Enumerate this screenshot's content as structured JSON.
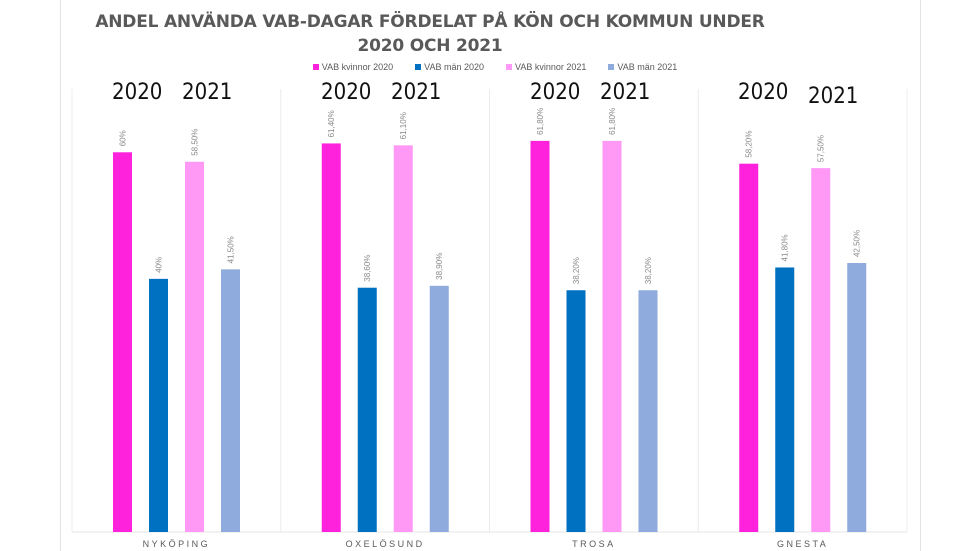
{
  "chart_data": {
    "type": "bar",
    "title": "ANDEL ANVÄNDA VAB-DAGAR FÖRDELAT PÅ KÖN OCH KOMMUN UNDER 2020 OCH 2021",
    "title_lines": [
      "ANDEL ANVÄNDA VAB-DAGAR FÖRDELAT PÅ KÖN OCH KOMMUN UNDER",
      "2020 OCH 2021"
    ],
    "xlabel": "",
    "ylabel": "",
    "ylim": [
      0,
      70
    ],
    "grid": false,
    "legend_position": "top",
    "categories": [
      "NYKÖPING",
      "OXELÖSUND",
      "TROSA",
      "GNESTA"
    ],
    "series": [
      {
        "name": "VAB kvinnor 2020",
        "color": "#ff22dd",
        "values": [
          60,
          61.4,
          61.8,
          58.2
        ],
        "labels": [
          "60%",
          "61,40%",
          "61,80%",
          "58,20%"
        ]
      },
      {
        "name": "VAB män 2020",
        "color": "#0070c0",
        "values": [
          40,
          38.6,
          38.2,
          41.8
        ],
        "labels": [
          "40%",
          "38,60%",
          "38,20%",
          "41,80%"
        ]
      },
      {
        "name": "VAB kvinnor 2021",
        "color": "#ff99f5",
        "values": [
          58.5,
          61.1,
          61.8,
          57.5
        ],
        "labels": [
          "58,50%",
          "61,10%",
          "61,80%",
          "57,50%"
        ]
      },
      {
        "name": "VAB män 2021",
        "color": "#8faadc",
        "values": [
          41.5,
          38.9,
          38.2,
          42.5
        ],
        "labels": [
          "41,50%",
          "38,90%",
          "38,20%",
          "42,50%"
        ]
      }
    ],
    "annotations": [
      {
        "category": "NYKÖPING",
        "labels": [
          "2020",
          "2021"
        ]
      },
      {
        "category": "OXELÖSUND",
        "labels": [
          "2020",
          "2021"
        ]
      },
      {
        "category": "TROSA",
        "labels": [
          "2020",
          "2021"
        ]
      },
      {
        "category": "GNESTA",
        "labels": [
          "2020",
          "2021"
        ]
      }
    ]
  }
}
